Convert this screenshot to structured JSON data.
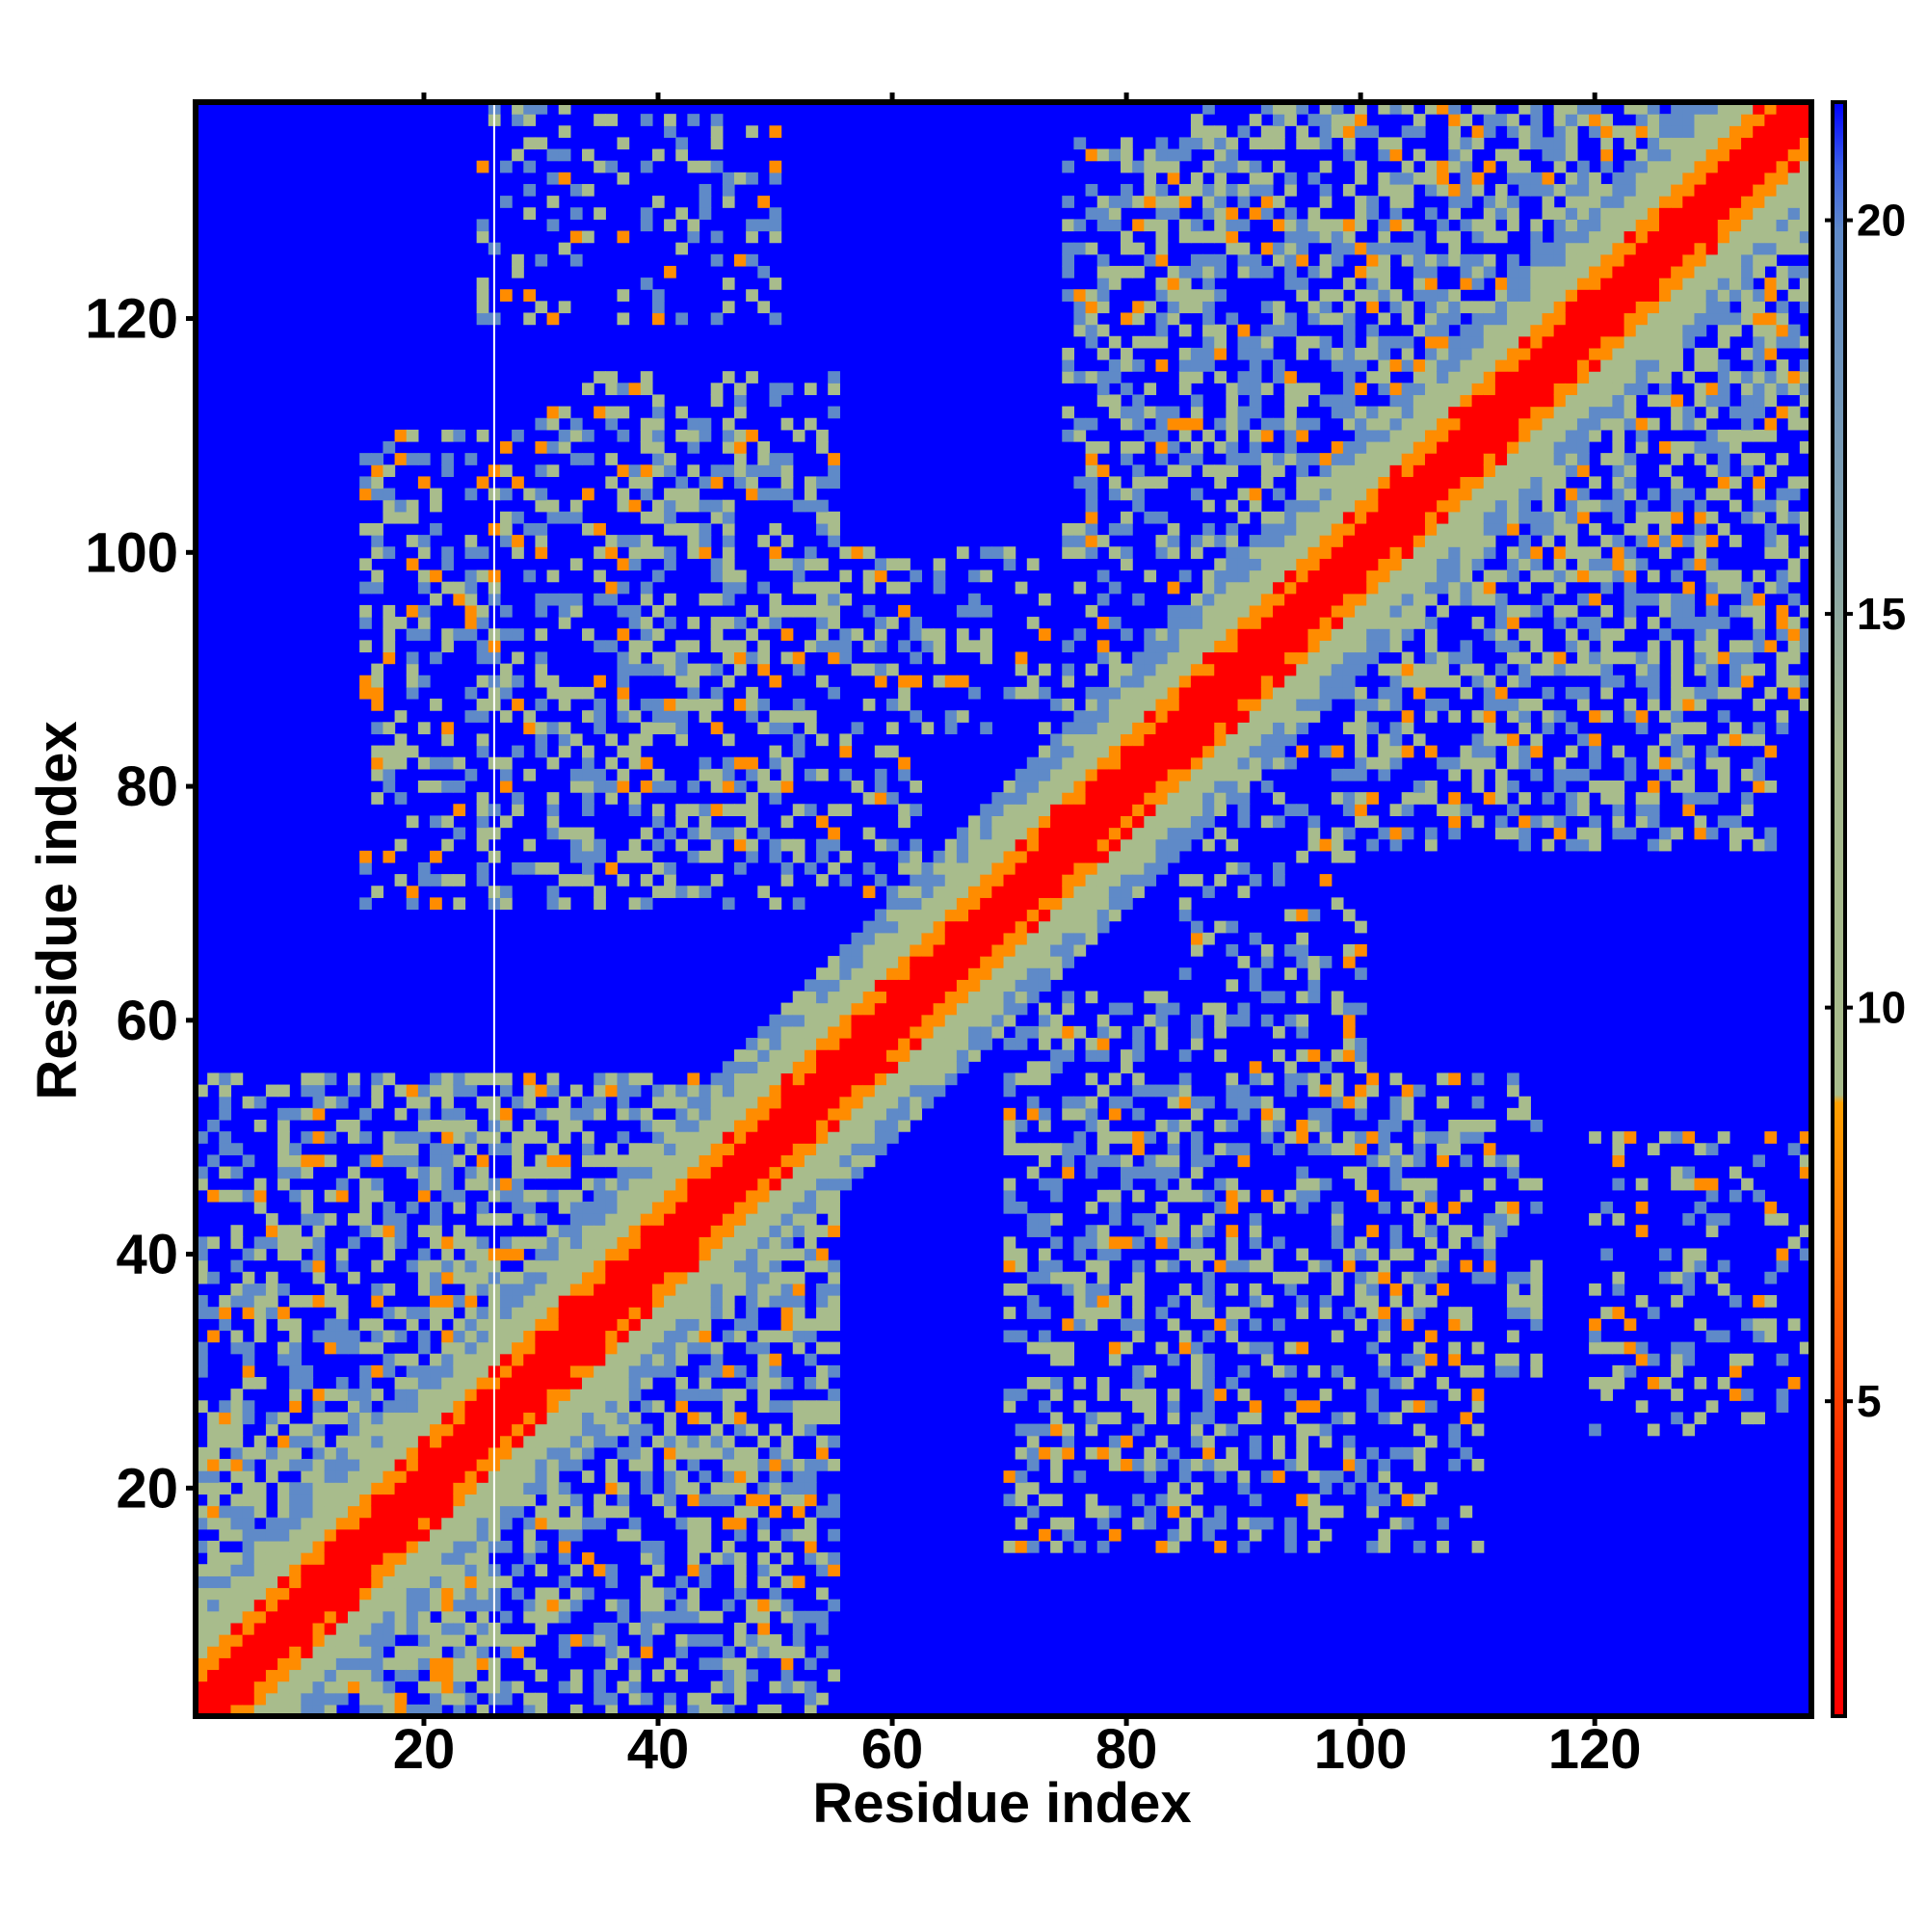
{
  "chart_data": {
    "type": "heatmap",
    "title": "",
    "xlabel": "Residue index",
    "ylabel": "Residue index",
    "n_residues": 138,
    "xlim": [
      1,
      138
    ],
    "ylim": [
      1,
      138
    ],
    "x_ticks": [
      "20",
      "40",
      "60",
      "80",
      "100",
      "120"
    ],
    "y_ticks": [
      "20",
      "40",
      "60",
      "80",
      "100",
      "120"
    ],
    "x_tick_values": [
      20,
      40,
      60,
      80,
      100,
      120
    ],
    "y_tick_values": [
      20,
      40,
      60,
      80,
      100,
      120
    ],
    "colorbar": {
      "ticks": [
        "5",
        "10",
        "15",
        "20"
      ],
      "tick_values": [
        5,
        10,
        15,
        20
      ],
      "range": [
        1,
        21.5
      ]
    },
    "colors": {
      "background": "#0000ff",
      "near": "#ff0000",
      "close": "#ff8c00",
      "mid": "#a8bc8c",
      "far": "#5f8ac8",
      "gap_line": "#ffffff"
    },
    "gap_residue": 26,
    "structure_blocks": [
      {
        "i": [
          1,
          26
        ],
        "j": [
          1,
          26
        ],
        "strength": 0.9
      },
      {
        "i": [
          1,
          55
        ],
        "j": [
          20,
          55
        ],
        "strength": 0.55
      },
      {
        "i": [
          20,
          55
        ],
        "j": [
          20,
          55
        ],
        "strength": 0.75
      },
      {
        "i": [
          18,
          62
        ],
        "j": [
          70,
          100
        ],
        "strength": 0.45
      },
      {
        "i": [
          60,
          95
        ],
        "j": [
          85,
          100
        ],
        "strength": 0.3
      },
      {
        "i": [
          88,
          138
        ],
        "j": [
          88,
          138
        ],
        "strength": 0.65
      },
      {
        "i": [
          75,
          115
        ],
        "j": [
          100,
          135
        ],
        "strength": 0.55
      },
      {
        "i": [
          85,
          115
        ],
        "j": [
          30,
          55
        ],
        "strength": 0.5
      },
      {
        "i": [
          70,
          110
        ],
        "j": [
          15,
          35
        ],
        "strength": 0.4
      },
      {
        "i": [
          105,
          138
        ],
        "j": [
          85,
          120
        ],
        "strength": 0.45
      },
      {
        "i": [
          120,
          138
        ],
        "j": [
          25,
          50
        ],
        "strength": 0.3
      }
    ]
  }
}
